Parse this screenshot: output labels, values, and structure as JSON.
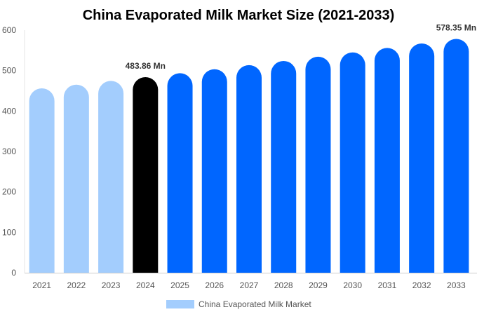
{
  "chart_data": {
    "type": "bar",
    "title": "China Evaporated Milk Market Size (2021-2033)",
    "xlabel": "",
    "ylabel": "",
    "ylim": [
      0,
      600
    ],
    "yticks": [
      0,
      100,
      200,
      300,
      400,
      500,
      600
    ],
    "grid": false,
    "legend_position": "bottom",
    "categories": [
      "2021",
      "2022",
      "2023",
      "2024",
      "2025",
      "2026",
      "2027",
      "2028",
      "2029",
      "2030",
      "2031",
      "2032",
      "2033"
    ],
    "series": [
      {
        "name": "China Evaporated Milk Market",
        "values": [
          456.0,
          465.1,
          474.4,
          483.86,
          493.5,
          503.4,
          513.5,
          523.8,
          534.3,
          545.0,
          555.9,
          567.0,
          578.35
        ],
        "colors": [
          "#a3cdfd",
          "#a3cdfd",
          "#a3cdfd",
          "#000000",
          "#0066ff",
          "#0066ff",
          "#0066ff",
          "#0066ff",
          "#0066ff",
          "#0066ff",
          "#0066ff",
          "#0066ff",
          "#0066ff"
        ]
      }
    ],
    "data_labels": [
      {
        "category": "2024",
        "text": "483.86 Mn"
      },
      {
        "category": "2033",
        "text": "578.35 Mn"
      }
    ],
    "legend_color": "#a3cdfd"
  }
}
